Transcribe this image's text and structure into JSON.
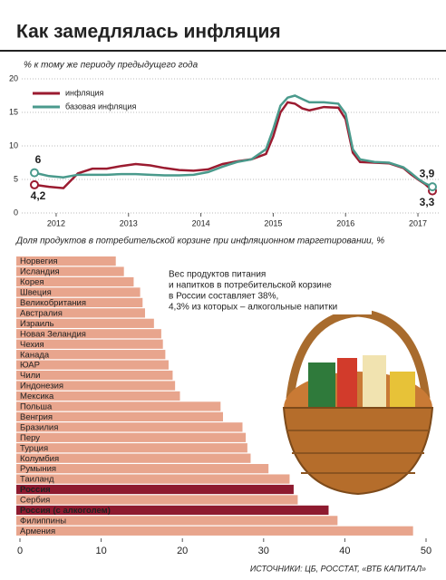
{
  "title": "Как замедлялась инфляция",
  "chart_data": [
    {
      "type": "line",
      "ylabel": "% к тому же периоду предыдущего года",
      "x": [
        2011.7,
        2011.9,
        2012.1,
        2012.3,
        2012.5,
        2012.7,
        2012.9,
        2013.1,
        2013.3,
        2013.5,
        2013.7,
        2013.9,
        2014.1,
        2014.3,
        2014.5,
        2014.7,
        2014.9,
        2015.0,
        2015.1,
        2015.2,
        2015.3,
        2015.4,
        2015.5,
        2015.7,
        2015.9,
        2016.0,
        2016.1,
        2016.2,
        2016.4,
        2016.6,
        2016.8,
        2016.9,
        2017.0,
        2017.1,
        2017.2
      ],
      "series": [
        {
          "name": "инфляция",
          "color": "#9b1b30",
          "values": [
            4.2,
            3.9,
            3.7,
            5.9,
            6.6,
            6.6,
            7.0,
            7.3,
            7.1,
            6.7,
            6.4,
            6.3,
            6.5,
            7.3,
            7.7,
            8.0,
            8.8,
            11.4,
            15.0,
            16.5,
            16.3,
            15.6,
            15.3,
            15.8,
            15.7,
            14.0,
            9.0,
            7.6,
            7.5,
            7.4,
            6.7,
            5.8,
            5.0,
            4.3,
            3.3
          ],
          "start_label": "4,2",
          "end_label": "3,3"
        },
        {
          "name": "базовая инфляция",
          "color": "#4a9a8c",
          "values": [
            6.0,
            5.5,
            5.3,
            5.7,
            5.7,
            5.7,
            5.8,
            5.8,
            5.7,
            5.6,
            5.6,
            5.7,
            6.1,
            6.9,
            7.6,
            8.0,
            9.5,
            12.5,
            16.0,
            17.2,
            17.5,
            17.0,
            16.5,
            16.5,
            16.3,
            14.8,
            9.5,
            8.0,
            7.6,
            7.5,
            6.8,
            6.0,
            5.1,
            4.4,
            3.9
          ],
          "start_label": "6",
          "end_label": "3,9"
        }
      ],
      "xlim": [
        2011.7,
        2017.2
      ],
      "xticks": [
        2012,
        2013,
        2014,
        2015,
        2016,
        2017
      ],
      "ylim": [
        0,
        20
      ],
      "yticks": [
        0,
        5,
        10,
        15,
        20
      ],
      "grid": true,
      "legend": "top-left"
    },
    {
      "type": "hbar",
      "title": "Доля продуктов в потребительской корзине при инфляционном таргетировании, %",
      "categories": [
        "Норвегия",
        "Исландия",
        "Корея",
        "Швеция",
        "Великобритания",
        "Австралия",
        "Израиль",
        "Новая Зеландия",
        "Чехия",
        "Канада",
        "ЮАР",
        "Чили",
        "Индонезия",
        "Мексика",
        "Польша",
        "Венгрия",
        "Бразилия",
        "Перу",
        "Турция",
        "Колумбия",
        "Румыния",
        "Таиланд",
        "Россия",
        "Сербия",
        "Россия (с алкоголем)",
        "Филиппины",
        "Армения"
      ],
      "values": [
        11.8,
        12.8,
        14.0,
        14.8,
        15.1,
        15.4,
        16.5,
        17.4,
        17.6,
        17.9,
        18.3,
        18.8,
        19.1,
        19.7,
        24.7,
        25.0,
        27.4,
        27.8,
        28.0,
        28.4,
        30.6,
        33.2,
        33.7,
        34.2,
        38.0,
        39.1,
        48.4
      ],
      "color": "#e8a58d",
      "highlight_color": "#8e1a2f",
      "highlight": [
        "Россия",
        "Россия (с алкоголем)"
      ],
      "xlim": [
        0,
        50
      ],
      "xticks": [
        0,
        10,
        20,
        30,
        40,
        50
      ],
      "note": [
        "Вес продуктов питания",
        "и напитков в потребительской корзине",
        "в России составляет 38%,",
        "4,3% из которых – алкогольные напитки"
      ]
    }
  ],
  "source": "ИСТОЧНИКИ: ЦБ, РОССТАТ, «ВТБ КАПИТАЛ»"
}
